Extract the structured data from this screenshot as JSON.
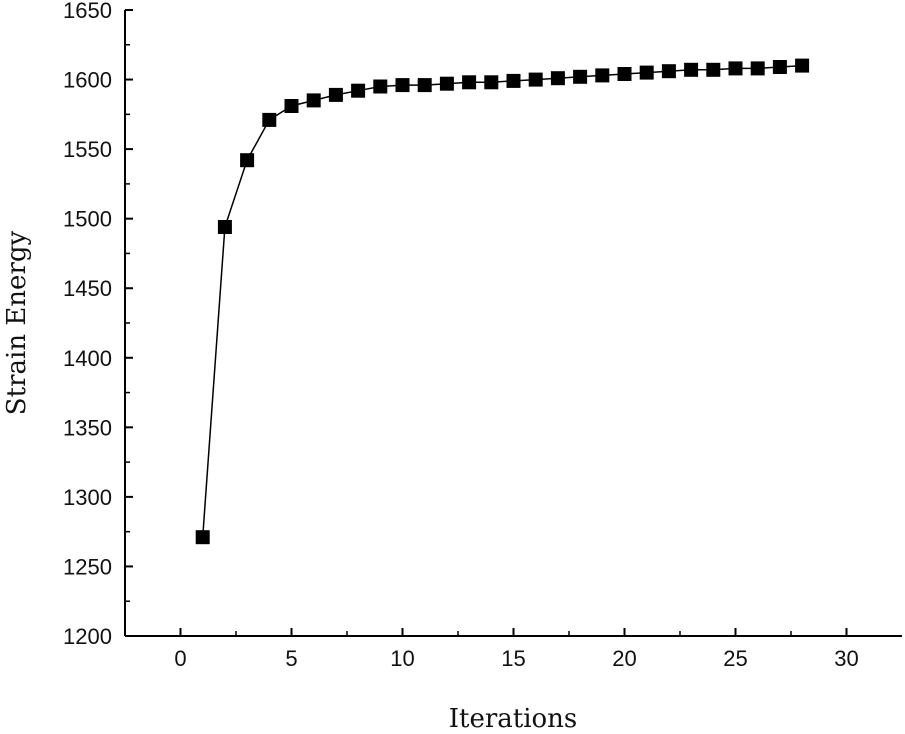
{
  "chart_data": {
    "type": "line",
    "title": "",
    "xlabel": "Iterations",
    "ylabel": "Strain Energy",
    "xlim": [
      -2.5,
      32.5
    ],
    "ylim": [
      1200,
      1650
    ],
    "xticks": [
      0,
      5,
      10,
      15,
      20,
      25,
      30
    ],
    "yticks": [
      1200,
      1250,
      1300,
      1350,
      1400,
      1450,
      1500,
      1550,
      1600,
      1650
    ],
    "grid": false,
    "legend": "none",
    "marker": "square",
    "series": [
      {
        "color": "#000000",
        "x": [
          1,
          2,
          3,
          4,
          5,
          6,
          7,
          8,
          9,
          10,
          11,
          12,
          13,
          14,
          15,
          16,
          17,
          18,
          19,
          20,
          21,
          22,
          23,
          24,
          25,
          26,
          27,
          28
        ],
        "y": [
          1271,
          1494,
          1542,
          1571,
          1581,
          1585,
          1589,
          1592,
          1595,
          1596,
          1596,
          1597,
          1598,
          1598,
          1599,
          1600,
          1601,
          1602,
          1603,
          1604,
          1605,
          1606,
          1607,
          1607,
          1608,
          1608,
          1609,
          1610
        ]
      }
    ]
  }
}
